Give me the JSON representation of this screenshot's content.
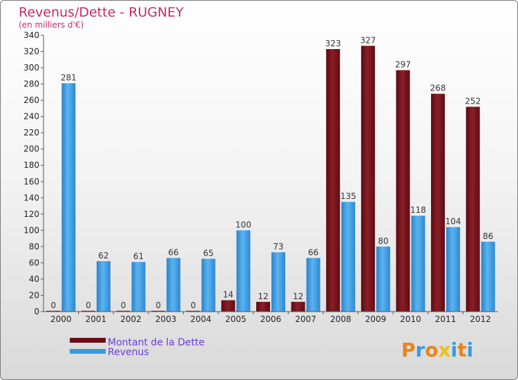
{
  "chart_data": {
    "type": "bar",
    "title": "Revenus/Dette - RUGNEY",
    "subtitle": "(en milliers d'€)",
    "categories": [
      "2000",
      "2001",
      "2002",
      "2003",
      "2004",
      "2005",
      "2006",
      "2007",
      "2008",
      "2009",
      "2010",
      "2011",
      "2012"
    ],
    "series": [
      {
        "name": "Montant de la Dette",
        "color": "#7a0f18",
        "values": [
          0,
          0,
          0,
          0,
          0,
          14,
          12,
          12,
          323,
          327,
          297,
          268,
          252
        ]
      },
      {
        "name": "Revenus",
        "color": "#3a9ae0",
        "values": [
          281,
          62,
          61,
          66,
          65,
          100,
          73,
          66,
          135,
          80,
          118,
          104,
          86
        ]
      }
    ],
    "ylim": [
      0,
      340
    ],
    "yticks": [
      0,
      20,
      40,
      60,
      80,
      100,
      120,
      140,
      160,
      180,
      200,
      220,
      240,
      260,
      280,
      300,
      320,
      340
    ],
    "grid": false,
    "legend_position": "bottom-left"
  },
  "brand": {
    "logo_text": "Proxiti",
    "colors": [
      "#e8841a",
      "#3a9ae0",
      "#e8841a",
      "#e8c21a",
      "#3a9ae0",
      "#e8841a",
      "#3a9ae0"
    ]
  }
}
